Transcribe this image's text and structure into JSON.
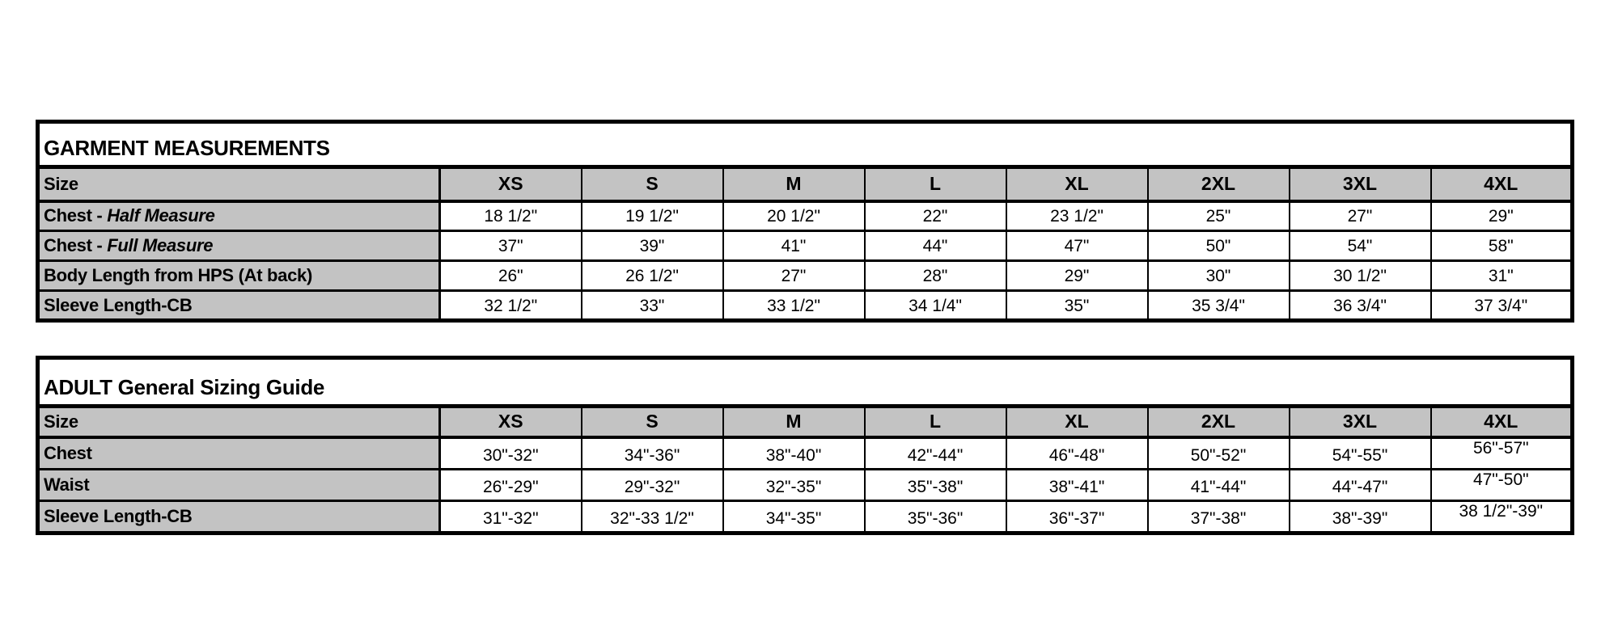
{
  "colors": {
    "background": "#ffffff",
    "header_gray": "#c3c3c3",
    "border_black": "#000000",
    "text_black": "#000000"
  },
  "tables": [
    {
      "title": "GARMENT MEASUREMENTS",
      "size_label": "Size",
      "sizes": [
        "XS",
        "S",
        "M",
        "L",
        "XL",
        "2XL",
        "3XL",
        "4XL"
      ],
      "rows": [
        {
          "label": "Chest - ",
          "label_em": "Half Measure",
          "values": [
            "18 1/2\"",
            "19 1/2\"",
            "20 1/2\"",
            "22\"",
            "23 1/2\"",
            "25\"",
            "27\"",
            "29\""
          ]
        },
        {
          "label": "Chest - ",
          "label_em": "Full Measure",
          "values": [
            "37\"",
            "39\"",
            "41\"",
            "44\"",
            "47\"",
            "50\"",
            "54\"",
            "58\""
          ]
        },
        {
          "label": "Body Length from HPS (At back)",
          "label_em": "",
          "values": [
            "26\"",
            "26 1/2\"",
            "27\"",
            "28\"",
            "29\"",
            "30\"",
            "30 1/2\"",
            "31\""
          ]
        },
        {
          "label": "Sleeve Length-CB",
          "label_em": "",
          "values": [
            "32 1/2\"",
            "33\"",
            "33 1/2\"",
            "34 1/4\"",
            "35\"",
            "35 3/4\"",
            "36 3/4\"",
            "37 3/4\""
          ]
        }
      ]
    },
    {
      "title": "ADULT General Sizing Guide",
      "size_label": "Size",
      "sizes": [
        "XS",
        "S",
        "M",
        "L",
        "XL",
        "2XL",
        "3XL",
        "4XL"
      ],
      "rows": [
        {
          "label": "Chest",
          "label_em": "",
          "values": [
            "30\"-32\"",
            "34\"-36\"",
            "38\"-40\"",
            "42\"-44\"",
            "46\"-48\"",
            "50\"-52\"",
            "54\"-55\"",
            "56\"-57\""
          ]
        },
        {
          "label": "Waist",
          "label_em": "",
          "values": [
            "26\"-29\"",
            "29\"-32\"",
            "32\"-35\"",
            "35\"-38\"",
            "38\"-41\"",
            "41\"-44\"",
            "44\"-47\"",
            "47\"-50\""
          ]
        },
        {
          "label": "Sleeve Length-CB",
          "label_em": "",
          "values": [
            "31\"-32\"",
            "32\"-33 1/2\"",
            "34\"-35\"",
            "35\"-36\"",
            "36\"-37\"",
            "37\"-38\"",
            "38\"-39\"",
            "38 1/2\"-39\""
          ]
        }
      ]
    }
  ],
  "chart_data": [
    {
      "type": "table",
      "title": "GARMENT MEASUREMENTS",
      "columns": [
        "Size",
        "XS",
        "S",
        "M",
        "L",
        "XL",
        "2XL",
        "3XL",
        "4XL"
      ],
      "rows": [
        [
          "Chest - Half Measure",
          "18 1/2\"",
          "19 1/2\"",
          "20 1/2\"",
          "22\"",
          "23 1/2\"",
          "25\"",
          "27\"",
          "29\""
        ],
        [
          "Chest - Full Measure",
          "37\"",
          "39\"",
          "41\"",
          "44\"",
          "47\"",
          "50\"",
          "54\"",
          "58\""
        ],
        [
          "Body Length from HPS (At back)",
          "26\"",
          "26 1/2\"",
          "27\"",
          "28\"",
          "29\"",
          "30\"",
          "30 1/2\"",
          "31\""
        ],
        [
          "Sleeve Length-CB",
          "32 1/2\"",
          "33\"",
          "33 1/2\"",
          "34 1/4\"",
          "35\"",
          "35 3/4\"",
          "36 3/4\"",
          "37 3/4\""
        ]
      ],
      "layout": {
        "header_fill": "#c3c3c3",
        "label_column_fill": "#c3c3c3",
        "grid": true
      }
    },
    {
      "type": "table",
      "title": "ADULT General Sizing Guide",
      "columns": [
        "Size",
        "XS",
        "S",
        "M",
        "L",
        "XL",
        "2XL",
        "3XL",
        "4XL"
      ],
      "rows": [
        [
          "Chest",
          "30\"-32\"",
          "34\"-36\"",
          "38\"-40\"",
          "42\"-44\"",
          "46\"-48\"",
          "50\"-52\"",
          "54\"-55\"",
          "56\"-57\""
        ],
        [
          "Waist",
          "26\"-29\"",
          "29\"-32\"",
          "32\"-35\"",
          "35\"-38\"",
          "38\"-41\"",
          "41\"-44\"",
          "44\"-47\"",
          "47\"-50\""
        ],
        [
          "Sleeve Length-CB",
          "31\"-32\"",
          "32\"-33 1/2\"",
          "34\"-35\"",
          "35\"-36\"",
          "36\"-37\"",
          "37\"-38\"",
          "38\"-39\"",
          "38 1/2\"-39\""
        ]
      ],
      "layout": {
        "header_fill": "#c3c3c3",
        "label_column_fill": "#c3c3c3",
        "grid": true
      }
    }
  ]
}
